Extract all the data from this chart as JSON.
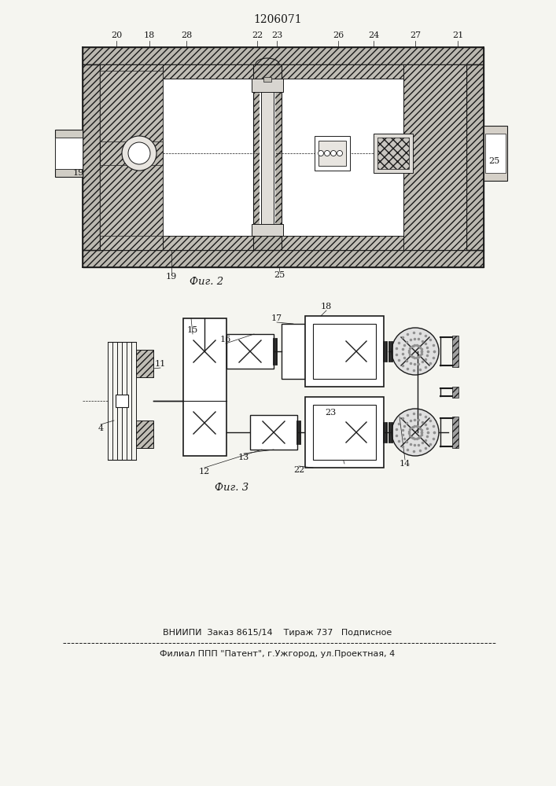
{
  "title": "1206071",
  "fig2_label": "Фиг. 2",
  "fig3_label": "Фиг. 3",
  "footer_line1": "ВНИИПИ  Заказ 8615/14    Тираж 737   Подписное",
  "footer_line2": "Филиал ППП \"Патент\", г.Ужгород, ул.Проектная, 4",
  "bg_color": "#f5f5f0",
  "line_color": "#1a1a1a",
  "hatch_density": 4
}
